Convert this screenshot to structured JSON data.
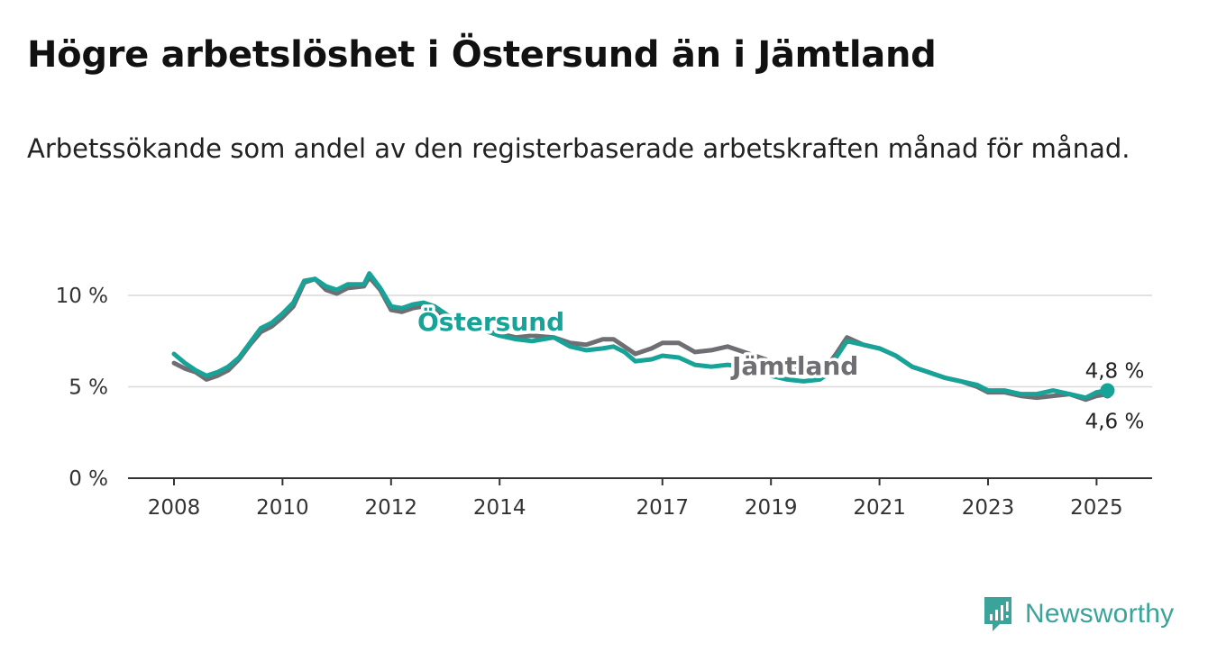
{
  "title": "Högre arbetslöshet i Östersund än i Jämtland",
  "subtitle": "Arbetssökande som andel av den registerbaserade arbetskraften månad för månad.",
  "brand": {
    "name": "Newsworthy",
    "icon": "newsworthy-logo-icon",
    "color": "#3aa39a"
  },
  "chart_data": {
    "type": "line",
    "title": "",
    "xlabel": "",
    "ylabel": "",
    "ylim": [
      0,
      10
    ],
    "yticks": [
      0,
      5,
      10
    ],
    "ytick_labels": [
      "0 %",
      "5 %",
      "10 %"
    ],
    "xticks": [
      2008,
      2010,
      2012,
      2014,
      2017,
      2019,
      2021,
      2023,
      2025
    ],
    "xtick_labels": [
      "2008",
      "2010",
      "2012",
      "2014",
      "2017",
      "2019",
      "2021",
      "2023",
      "2025"
    ],
    "grid": true,
    "legend": "inline labels",
    "series": [
      {
        "name": "Jämtland",
        "color": "#6e6e73",
        "points": [
          [
            2008.0,
            6.3
          ],
          [
            2008.2,
            6.0
          ],
          [
            2008.4,
            5.8
          ],
          [
            2008.6,
            5.4
          ],
          [
            2008.8,
            5.6
          ],
          [
            2009.0,
            5.9
          ],
          [
            2009.2,
            6.5
          ],
          [
            2009.4,
            7.3
          ],
          [
            2009.6,
            8.0
          ],
          [
            2009.8,
            8.3
          ],
          [
            2010.0,
            8.8
          ],
          [
            2010.2,
            9.4
          ],
          [
            2010.4,
            10.7
          ],
          [
            2010.6,
            10.9
          ],
          [
            2010.8,
            10.3
          ],
          [
            2011.0,
            10.1
          ],
          [
            2011.2,
            10.4
          ],
          [
            2011.5,
            10.5
          ],
          [
            2011.6,
            11.0
          ],
          [
            2011.8,
            10.3
          ],
          [
            2012.0,
            9.2
          ],
          [
            2012.2,
            9.1
          ],
          [
            2012.4,
            9.3
          ],
          [
            2012.6,
            9.4
          ],
          [
            2012.8,
            9.2
          ],
          [
            2013.0,
            8.8
          ],
          [
            2013.2,
            8.5
          ],
          [
            2013.5,
            8.2
          ],
          [
            2013.8,
            8.0
          ],
          [
            2014.0,
            7.9
          ],
          [
            2014.3,
            7.7
          ],
          [
            2014.6,
            7.8
          ],
          [
            2015.0,
            7.7
          ],
          [
            2015.3,
            7.4
          ],
          [
            2015.6,
            7.3
          ],
          [
            2015.9,
            7.6
          ],
          [
            2016.1,
            7.6
          ],
          [
            2016.3,
            7.2
          ],
          [
            2016.5,
            6.8
          ],
          [
            2016.8,
            7.1
          ],
          [
            2017.0,
            7.4
          ],
          [
            2017.3,
            7.4
          ],
          [
            2017.6,
            6.9
          ],
          [
            2017.9,
            7.0
          ],
          [
            2018.2,
            7.2
          ],
          [
            2018.5,
            6.9
          ],
          [
            2018.8,
            6.6
          ],
          [
            2019.0,
            6.4
          ],
          [
            2019.3,
            6.1
          ],
          [
            2019.6,
            6.0
          ],
          [
            2019.9,
            6.1
          ],
          [
            2020.0,
            6.0
          ],
          [
            2020.2,
            6.8
          ],
          [
            2020.4,
            7.7
          ],
          [
            2020.7,
            7.3
          ],
          [
            2021.0,
            7.1
          ],
          [
            2021.3,
            6.7
          ],
          [
            2021.6,
            6.1
          ],
          [
            2021.9,
            5.8
          ],
          [
            2022.2,
            5.5
          ],
          [
            2022.5,
            5.3
          ],
          [
            2022.8,
            5.0
          ],
          [
            2023.0,
            4.7
          ],
          [
            2023.3,
            4.7
          ],
          [
            2023.6,
            4.5
          ],
          [
            2023.9,
            4.4
          ],
          [
            2024.2,
            4.5
          ],
          [
            2024.5,
            4.6
          ],
          [
            2024.8,
            4.3
          ],
          [
            2025.0,
            4.5
          ],
          [
            2025.2,
            4.6
          ]
        ],
        "last_label": "4,6 %"
      },
      {
        "name": "Östersund",
        "color": "#17a398",
        "points": [
          [
            2008.0,
            6.8
          ],
          [
            2008.2,
            6.3
          ],
          [
            2008.4,
            5.9
          ],
          [
            2008.6,
            5.6
          ],
          [
            2008.8,
            5.8
          ],
          [
            2009.0,
            6.1
          ],
          [
            2009.2,
            6.6
          ],
          [
            2009.4,
            7.4
          ],
          [
            2009.6,
            8.2
          ],
          [
            2009.8,
            8.5
          ],
          [
            2010.0,
            9.0
          ],
          [
            2010.2,
            9.6
          ],
          [
            2010.4,
            10.8
          ],
          [
            2010.6,
            10.9
          ],
          [
            2010.8,
            10.5
          ],
          [
            2011.0,
            10.3
          ],
          [
            2011.2,
            10.6
          ],
          [
            2011.5,
            10.6
          ],
          [
            2011.6,
            11.2
          ],
          [
            2011.8,
            10.4
          ],
          [
            2012.0,
            9.4
          ],
          [
            2012.2,
            9.3
          ],
          [
            2012.4,
            9.5
          ],
          [
            2012.6,
            9.6
          ],
          [
            2012.8,
            9.4
          ],
          [
            2013.0,
            9.0
          ],
          [
            2013.2,
            8.6
          ],
          [
            2013.5,
            8.3
          ],
          [
            2013.8,
            8.0
          ],
          [
            2014.0,
            7.8
          ],
          [
            2014.3,
            7.6
          ],
          [
            2014.6,
            7.5
          ],
          [
            2015.0,
            7.7
          ],
          [
            2015.3,
            7.2
          ],
          [
            2015.6,
            7.0
          ],
          [
            2015.9,
            7.1
          ],
          [
            2016.1,
            7.2
          ],
          [
            2016.3,
            6.9
          ],
          [
            2016.5,
            6.4
          ],
          [
            2016.8,
            6.5
          ],
          [
            2017.0,
            6.7
          ],
          [
            2017.3,
            6.6
          ],
          [
            2017.6,
            6.2
          ],
          [
            2017.9,
            6.1
          ],
          [
            2018.2,
            6.2
          ],
          [
            2018.5,
            6.1
          ],
          [
            2018.8,
            5.8
          ],
          [
            2019.0,
            5.6
          ],
          [
            2019.3,
            5.4
          ],
          [
            2019.6,
            5.3
          ],
          [
            2019.9,
            5.4
          ],
          [
            2020.0,
            5.6
          ],
          [
            2020.2,
            6.6
          ],
          [
            2020.4,
            7.5
          ],
          [
            2020.7,
            7.3
          ],
          [
            2021.0,
            7.1
          ],
          [
            2021.3,
            6.7
          ],
          [
            2021.6,
            6.1
          ],
          [
            2021.9,
            5.8
          ],
          [
            2022.2,
            5.5
          ],
          [
            2022.5,
            5.3
          ],
          [
            2022.8,
            5.1
          ],
          [
            2023.0,
            4.8
          ],
          [
            2023.3,
            4.8
          ],
          [
            2023.6,
            4.6
          ],
          [
            2023.9,
            4.6
          ],
          [
            2024.2,
            4.8
          ],
          [
            2024.5,
            4.6
          ],
          [
            2024.8,
            4.4
          ],
          [
            2025.0,
            4.7
          ],
          [
            2025.2,
            4.8
          ]
        ],
        "last_label": "4,8 %"
      }
    ]
  }
}
